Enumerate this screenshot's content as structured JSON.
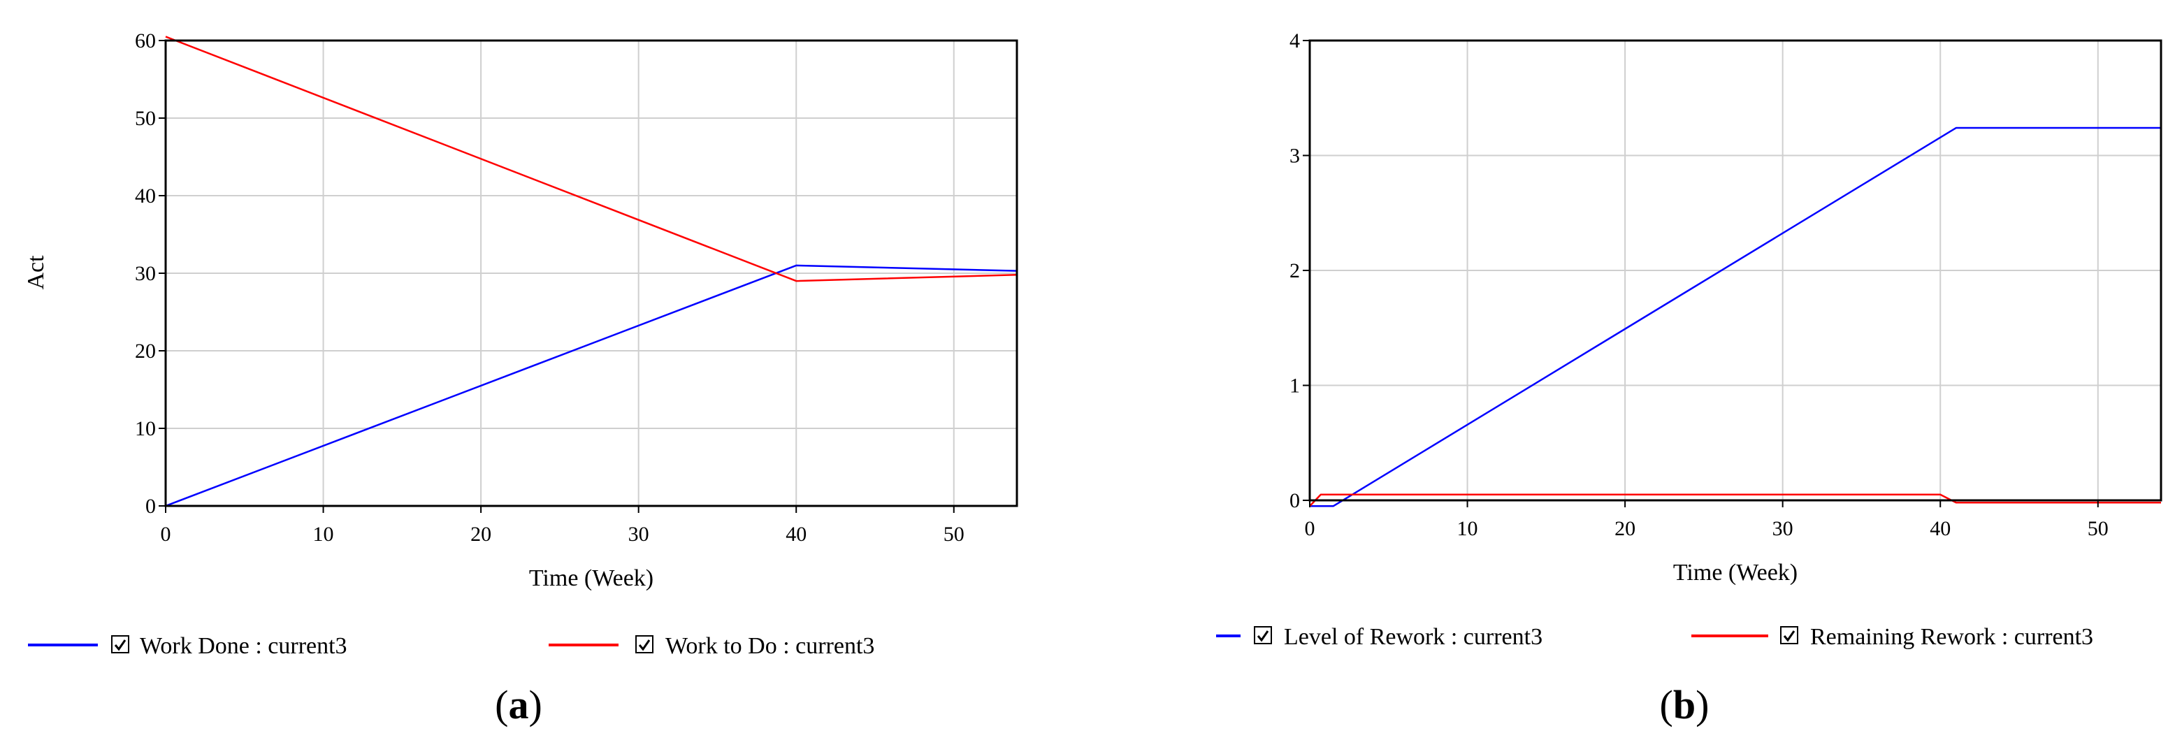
{
  "chart_data": [
    {
      "type": "line",
      "xlabel": "Time (Week)",
      "ylabel": "Act",
      "xlim": [
        0,
        54
      ],
      "ylim": [
        0,
        60
      ],
      "xticks": [
        0,
        10,
        20,
        30,
        40,
        50
      ],
      "yticks": [
        0,
        10,
        20,
        30,
        40,
        50,
        60
      ],
      "grid": true,
      "legend_position": "bottom",
      "series": [
        {
          "name": "Work Done : current3",
          "color": "#0000ff",
          "x": [
            0,
            40,
            54
          ],
          "y": [
            0,
            31,
            30.3
          ]
        },
        {
          "name": "Work to Do : current3",
          "color": "#ff0000",
          "x": [
            0,
            40,
            54
          ],
          "y": [
            60.5,
            29,
            29.8
          ]
        }
      ],
      "caption": {
        "open": "(",
        "letter": "a",
        "close": ")"
      }
    },
    {
      "type": "line",
      "xlabel": "Time (Week)",
      "ylabel": "",
      "xlim": [
        0,
        54
      ],
      "ylim": [
        0,
        4
      ],
      "xticks": [
        0,
        10,
        20,
        30,
        40,
        50
      ],
      "yticks": [
        0,
        1,
        2,
        3,
        4
      ],
      "grid": true,
      "legend_position": "bottom",
      "series": [
        {
          "name": "Level of Rework : current3",
          "color": "#0000ff",
          "x": [
            0,
            1.5,
            41,
            54
          ],
          "y": [
            -0.05,
            -0.05,
            3.24,
            3.24
          ]
        },
        {
          "name": "Remaining Rework : current3",
          "color": "#ff0000",
          "x": [
            0,
            0.7,
            40,
            41,
            54
          ],
          "y": [
            -0.05,
            0.05,
            0.05,
            -0.02,
            -0.02
          ]
        }
      ],
      "caption": {
        "open": "(",
        "letter": "b",
        "close": ")"
      }
    }
  ]
}
